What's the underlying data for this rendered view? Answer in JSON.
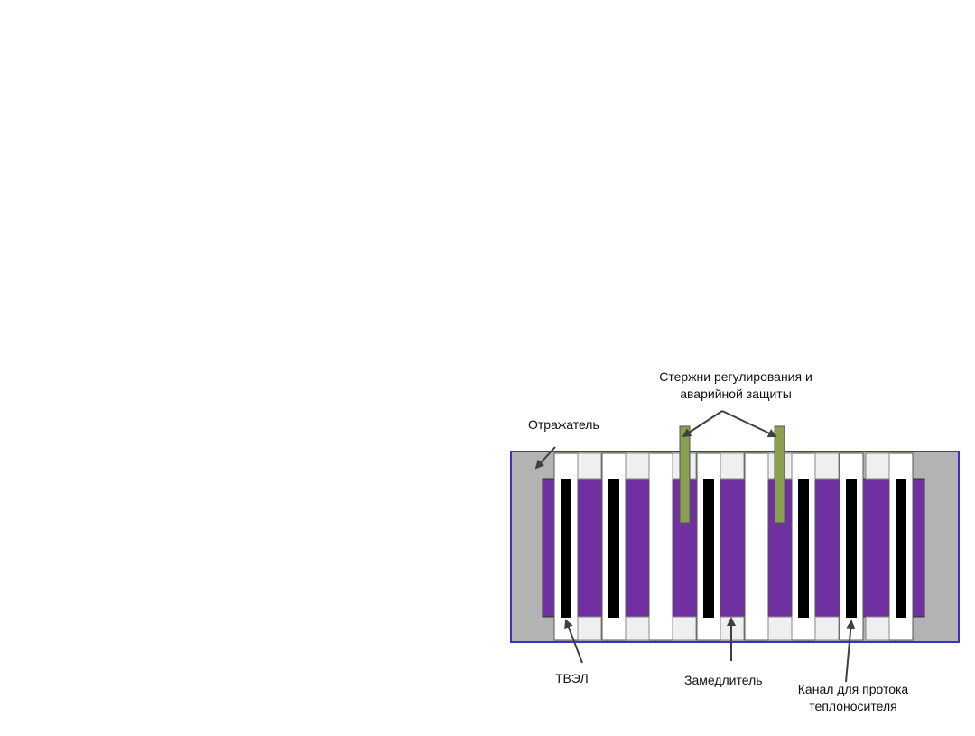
{
  "labels": {
    "rods_line1": "Стержни регулирования и",
    "rods_line2": "аварийной защиты",
    "reflector": "Отражатель",
    "fuel": "ТВЭЛ",
    "moderator": "Замедлитель",
    "channel_line1": "Канал для протока",
    "channel_line2": "теплоносителя"
  },
  "colors": {
    "vessel_border": "#3a32c8",
    "reflector": "#b3b3b3",
    "moderator": "#7030a0",
    "fuel": "#000000",
    "channel": "#ffffff",
    "channel_cap": "#efefef",
    "control_rod": "#8aa050",
    "arrow": "#404040"
  }
}
